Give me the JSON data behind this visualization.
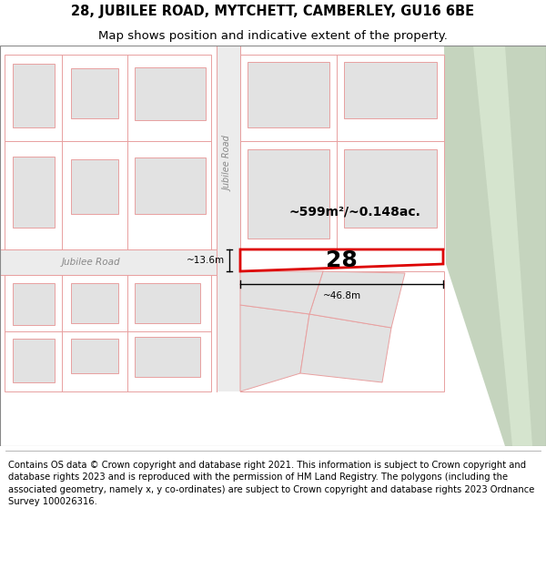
{
  "title_line1": "28, JUBILEE ROAD, MYTCHETT, CAMBERLEY, GU16 6BE",
  "title_line2": "Map shows position and indicative extent of the property.",
  "footer_text": "Contains OS data © Crown copyright and database right 2021. This information is subject to Crown copyright and database rights 2023 and is reproduced with the permission of HM Land Registry. The polygons (including the associated geometry, namely x, y co-ordinates) are subject to Crown copyright and database rights 2023 Ordnance Survey 100026316.",
  "road_label_h": "Jubilee Road",
  "road_label_v": "Jubilee Road",
  "property_number": "28",
  "area_text": "~599m²/~0.148ac.",
  "dim_width": "~46.8m",
  "dim_height": "~13.6m",
  "bg_color": "#f2f2f2",
  "building_fill": "#e2e2e2",
  "building_border": "#e8a0a0",
  "road_fill": "#ececec",
  "green_fill": "#c5d4be",
  "green_fill2": "#d5e4ce",
  "prop_fill": "#ffffff",
  "prop_border": "#dd0000",
  "footer_fontsize": 7.2,
  "title_fontsize1": 10.5,
  "title_fontsize2": 9.5
}
